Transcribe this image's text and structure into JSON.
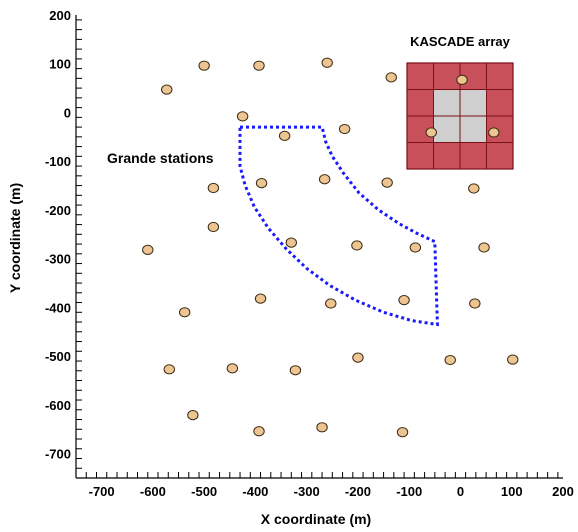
{
  "chart_data": {
    "type": "scatter",
    "title": "",
    "xlabel": "X coordinate (m)",
    "ylabel": "Y coordinate (m)",
    "xlim": [
      -750,
      200
    ],
    "ylim": [
      -750,
      200
    ],
    "x_ticks": [
      -700,
      -600,
      -500,
      -400,
      -300,
      -200,
      -100,
      0,
      100,
      200
    ],
    "y_ticks": [
      -700,
      -600,
      -500,
      -400,
      -300,
      -200,
      -100,
      0,
      100,
      200
    ],
    "grid": false,
    "points": [
      {
        "x": -500,
        "y": 96
      },
      {
        "x": -393,
        "y": 96
      },
      {
        "x": -260,
        "y": 102
      },
      {
        "x": -573,
        "y": 47
      },
      {
        "x": -135,
        "y": 72
      },
      {
        "x": -425,
        "y": -8
      },
      {
        "x": -343,
        "y": -48
      },
      {
        "x": -226,
        "y": -34
      },
      {
        "x": -482,
        "y": -155
      },
      {
        "x": -388,
        "y": -145
      },
      {
        "x": -265,
        "y": -137
      },
      {
        "x": -143,
        "y": -144
      },
      {
        "x": 26,
        "y": -156
      },
      {
        "x": -482,
        "y": -235
      },
      {
        "x": -610,
        "y": -282
      },
      {
        "x": -330,
        "y": -267
      },
      {
        "x": -202,
        "y": -273
      },
      {
        "x": -88,
        "y": -277
      },
      {
        "x": 46,
        "y": -277
      },
      {
        "x": -390,
        "y": -382
      },
      {
        "x": -253,
        "y": -392
      },
      {
        "x": -110,
        "y": -385
      },
      {
        "x": 28,
        "y": -392
      },
      {
        "x": -538,
        "y": -410
      },
      {
        "x": -200,
        "y": -503
      },
      {
        "x": -20,
        "y": -508
      },
      {
        "x": 102,
        "y": -507
      },
      {
        "x": -568,
        "y": -527
      },
      {
        "x": -445,
        "y": -525
      },
      {
        "x": -322,
        "y": -529
      },
      {
        "x": -522,
        "y": -621
      },
      {
        "x": -270,
        "y": -646
      },
      {
        "x": -393,
        "y": -654
      },
      {
        "x": -113,
        "y": -656
      }
    ],
    "annotations": {
      "grande_label": "Grande stations",
      "kascade_label": "KASCADE array"
    },
    "kascade_points": [
      {
        "x": 3,
        "y": 67
      },
      {
        "x": -57,
        "y": -41
      },
      {
        "x": 65,
        "y": -41
      }
    ],
    "colors": {
      "station_fill": "#ecc592",
      "station_stroke": "#3a2a10",
      "grande_label": "#d97818",
      "region_outline": "#1a1aff",
      "kascade_outer": "#c8505a",
      "kascade_inner": "#cfcfcf",
      "kascade_border": "#7a1018"
    }
  }
}
